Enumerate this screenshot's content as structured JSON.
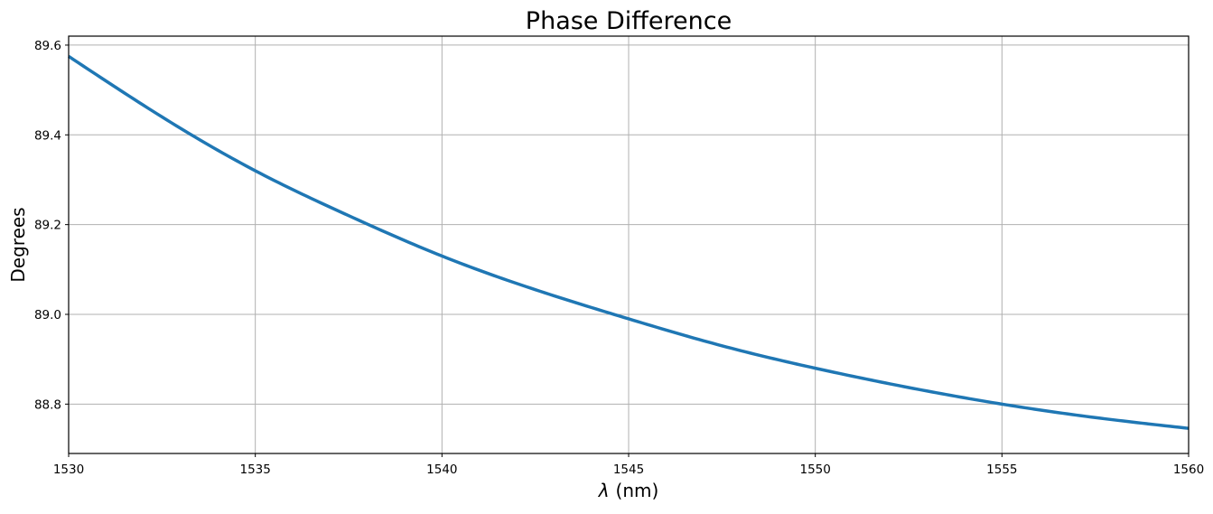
{
  "chart_data": {
    "type": "line",
    "title": "Phase Difference",
    "xlabel_symbol": "λ",
    "xlabel_unit": "(nm)",
    "ylabel": "Degrees",
    "xlim": [
      1530,
      1560
    ],
    "ylim": [
      88.69,
      89.62
    ],
    "grid": true,
    "xticks": [
      1530,
      1535,
      1540,
      1545,
      1550,
      1555,
      1560
    ],
    "xtick_labels": [
      "1530",
      "1535",
      "1540",
      "1545",
      "1550",
      "1555",
      "1560"
    ],
    "yticks": [
      88.8,
      89.0,
      89.2,
      89.4,
      89.6
    ],
    "ytick_labels": [
      "88.8",
      "89.0",
      "89.2",
      "89.4",
      "89.6"
    ],
    "series": [
      {
        "name": "Phase Difference",
        "color": "#1f77b4",
        "x": [
          1530,
          1532.5,
          1535,
          1537.5,
          1540,
          1542.5,
          1545,
          1547.5,
          1550,
          1552.5,
          1555,
          1557.5,
          1560
        ],
        "y": [
          89.575,
          89.44,
          89.32,
          89.22,
          89.13,
          89.055,
          88.99,
          88.93,
          88.88,
          88.837,
          88.8,
          88.77,
          88.746
        ]
      }
    ]
  }
}
